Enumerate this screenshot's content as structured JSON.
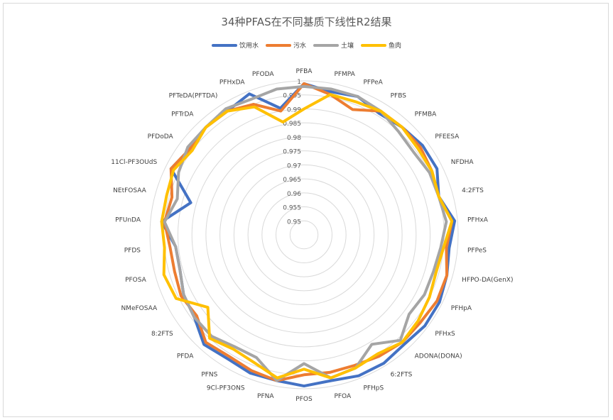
{
  "chart_data": {
    "type": "radar",
    "title": "34种PFAS在不同基质下线性R2结果",
    "categories": [
      "PFBA",
      "PFMPA",
      "PFPeA",
      "PFBS",
      "PFMBA",
      "PFEESA",
      "NFDHA",
      "4:2FTS",
      "PFHxA",
      "PFPeS",
      "HFPO-DA(GenX)",
      "PFHpA",
      "PFHxS",
      "ADONA(DONA)",
      "6:2FTS",
      "PFHpS",
      "PFOA",
      "PFOS",
      "PFNA",
      "9Cl-PF3ONS",
      "PFNS",
      "PFDA",
      "8:2FTS",
      "NMeFOSAA",
      "PFOSA",
      "PFDS",
      "PFUnDA",
      "NEtFOSAA",
      "11Cl-PF3OUdS",
      "PFDoDA",
      "PFTrDA",
      "PFTeDA(PFTDA)",
      "PFHxDA",
      "PFODA"
    ],
    "rlim": [
      0.945,
      1.0
    ],
    "rticks": [
      "0.95",
      "0.955",
      "0.96",
      "0.965",
      "0.97",
      "0.975",
      "0.98",
      "0.985",
      "0.99",
      "0.995",
      "1"
    ],
    "series": [
      {
        "name": "饮用水",
        "color": "#4472C4",
        "values": [
          0.999,
          0.997,
          0.998,
          0.996,
          0.997,
          0.998,
          0.998,
          0.995,
          0.999,
          0.997,
          0.998,
          0.999,
          0.999,
          0.998,
          0.999,
          0.999,
          0.998,
          0.999,
          0.998,
          0.998,
          0.997,
          0.998,
          0.994,
          0.993,
          0.991,
          0.991,
          0.996,
          0.987,
          0.998,
          0.996,
          0.997,
          0.997,
          0.999,
          0.991
        ]
      },
      {
        "name": "污水",
        "color": "#ED7D31",
        "values": [
          0.999,
          0.996,
          0.993,
          0.997,
          0.997,
          0.997,
          0.996,
          0.995,
          0.998,
          0.996,
          0.998,
          0.998,
          0.997,
          0.997,
          0.996,
          0.995,
          0.995,
          0.995,
          0.998,
          0.997,
          0.996,
          0.997,
          0.993,
          0.994,
          0.993,
          0.993,
          0.995,
          0.994,
          0.998,
          0.996,
          0.997,
          0.997,
          0.995,
          0.99
        ]
      },
      {
        "name": "土壤",
        "color": "#A5A5A5",
        "values": [
          0.998,
          0.998,
          0.998,
          0.997,
          0.995,
          0.994,
          0.995,
          0.995,
          0.996,
          0.994,
          0.993,
          0.993,
          0.992,
          0.996,
          0.991,
          0.996,
          0.997,
          0.991,
          0.998,
          0.992,
          0.992,
          0.994,
          0.994,
          0.993,
          0.991,
          0.991,
          0.995,
          0.992,
          0.995,
          0.997,
          0.997,
          0.998,
          0.997,
          0.998
        ]
      },
      {
        "name": "鱼肉",
        "color": "#FFC000",
        "values": [
          0.99,
          0.996,
          0.996,
          0.997,
          0.997,
          0.996,
          0.996,
          0.995,
          0.998,
          0.995,
          0.994,
          0.995,
          0.996,
          0.997,
          0.995,
          0.996,
          0.997,
          0.993,
          0.997,
          0.994,
          0.993,
          0.995,
          0.988,
          0.996,
          0.997,
          0.995,
          0.996,
          0.996,
          0.997,
          0.995,
          0.997,
          0.997,
          0.994,
          0.986
        ]
      }
    ]
  }
}
